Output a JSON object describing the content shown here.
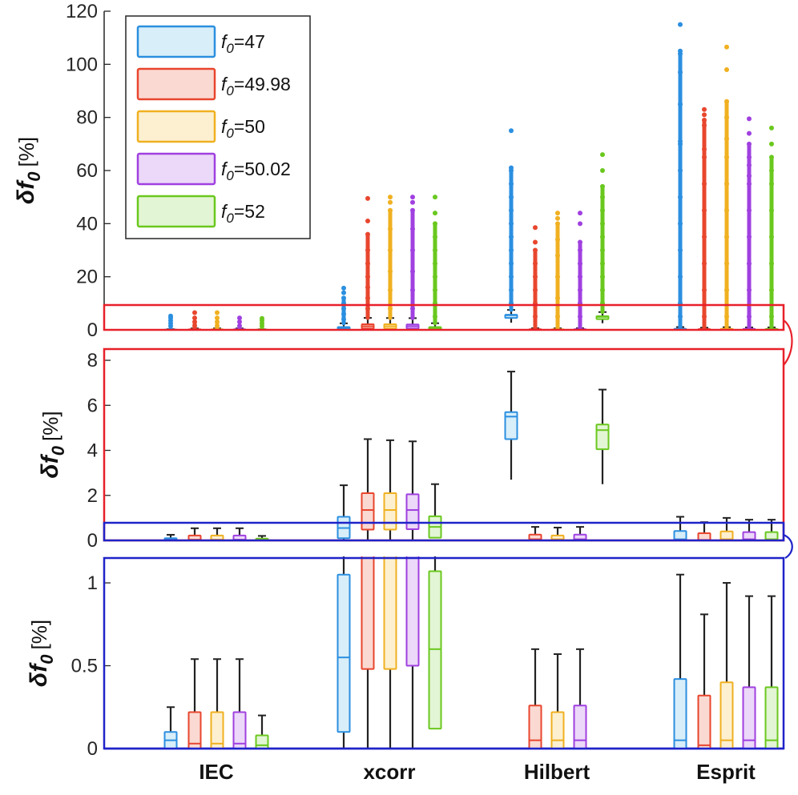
{
  "chart_data": [
    {
      "type": "box",
      "panel": "top",
      "ylabel": "δf0 [%]",
      "ylim": [
        0,
        120
      ],
      "yticks": [
        0,
        20,
        40,
        60,
        80,
        100,
        120
      ],
      "categories": [
        "IEC",
        "xcorr",
        "Hilbert",
        "Esprit"
      ],
      "series": [
        {
          "name": "f0=47",
          "color": "#2b8fe0",
          "fill": "#d8eef9",
          "boxes": [
            {
              "whisker_low": 0,
              "q1": 0,
              "median": 0.05,
              "q3": 0.1,
              "whisker_high": 0.25,
              "outliers": [
                1.5,
                2.5,
                3.5,
                4.5,
                5.2
              ]
            },
            {
              "whisker_low": 0,
              "q1": 0.1,
              "median": 0.55,
              "q3": 1.05,
              "whisker_high": 2.45,
              "outliers": [
                4,
                6,
                8,
                10,
                12,
                14,
                15.7
              ]
            },
            {
              "whisker_low": 2.7,
              "q1": 4.5,
              "median": 5.5,
              "q3": 5.7,
              "whisker_high": 7.5,
              "outliers": [
                10,
                15,
                20,
                25,
                30,
                35,
                40,
                45,
                50,
                55,
                60,
                61,
                75
              ]
            },
            {
              "whisker_low": 0,
              "q1": 0,
              "median": 0.05,
              "q3": 0.42,
              "whisker_high": 1.05,
              "outliers": [
                5,
                10,
                20,
                30,
                40,
                50,
                60,
                70,
                71,
                85,
                97,
                104,
                105,
                115
              ]
            }
          ]
        },
        {
          "name": "f0=49.98",
          "color": "#e8462e",
          "fill": "#fad9d2",
          "boxes": [
            {
              "whisker_low": 0,
              "q1": 0,
              "median": 0.03,
              "q3": 0.22,
              "whisker_high": 0.54,
              "outliers": [
                1.5,
                3,
                4.5,
                6.5
              ]
            },
            {
              "whisker_low": 0,
              "q1": 0.48,
              "median": 1.35,
              "q3": 2.1,
              "whisker_high": 4.5,
              "outliers": [
                8,
                12,
                16,
                20,
                25,
                30,
                36,
                41,
                49.5
              ]
            },
            {
              "whisker_low": 0,
              "q1": 0,
              "median": 0.05,
              "q3": 0.26,
              "whisker_high": 0.6,
              "outliers": [
                5,
                10,
                15,
                20,
                25,
                30,
                33,
                38.5
              ]
            },
            {
              "whisker_low": 0,
              "q1": 0,
              "median": 0.02,
              "q3": 0.32,
              "whisker_high": 0.81,
              "outliers": [
                5,
                15,
                25,
                35,
                45,
                55,
                65,
                68,
                77,
                79,
                81,
                83
              ]
            }
          ]
        },
        {
          "name": "f0=50",
          "color": "#f0b020",
          "fill": "#fcf0d0",
          "boxes": [
            {
              "whisker_low": 0,
              "q1": 0,
              "median": 0.03,
              "q3": 0.22,
              "whisker_high": 0.54,
              "outliers": [
                1.5,
                3,
                4.5,
                6.5
              ]
            },
            {
              "whisker_low": 0,
              "q1": 0.48,
              "median": 1.35,
              "q3": 2.1,
              "whisker_high": 4.45,
              "outliers": [
                8,
                15,
                22,
                30,
                38,
                45,
                48,
                50
              ]
            },
            {
              "whisker_low": 0,
              "q1": 0,
              "median": 0.05,
              "q3": 0.22,
              "whisker_high": 0.57,
              "outliers": [
                5,
                12,
                20,
                28,
                34,
                40,
                42,
                44
              ]
            },
            {
              "whisker_low": 0,
              "q1": 0,
              "median": 0.05,
              "q3": 0.4,
              "whisker_high": 1.0,
              "outliers": [
                5,
                15,
                25,
                35,
                45,
                55,
                65,
                72,
                80,
                86,
                98,
                106.5
              ]
            }
          ]
        },
        {
          "name": "f0=50.02",
          "color": "#a040e0",
          "fill": "#ecd8f8",
          "boxes": [
            {
              "whisker_low": 0,
              "q1": 0,
              "median": 0.03,
              "q3": 0.22,
              "whisker_high": 0.54,
              "outliers": [
                1.5,
                3,
                4.5
              ]
            },
            {
              "whisker_low": 0,
              "q1": 0.5,
              "median": 1.35,
              "q3": 2.05,
              "whisker_high": 4.4,
              "outliers": [
                8,
                15,
                22,
                30,
                38,
                45,
                48,
                50
              ]
            },
            {
              "whisker_low": 0,
              "q1": 0,
              "median": 0.05,
              "q3": 0.26,
              "whisker_high": 0.6,
              "outliers": [
                5,
                10,
                15,
                20,
                25,
                30,
                33,
                40,
                44
              ]
            },
            {
              "whisker_low": 0,
              "q1": 0,
              "median": 0.05,
              "q3": 0.37,
              "whisker_high": 0.92,
              "outliers": [
                5,
                15,
                25,
                35,
                45,
                55,
                58,
                62,
                65,
                70,
                74,
                79.5
              ]
            }
          ]
        },
        {
          "name": "f0=52",
          "color": "#6ac81e",
          "fill": "#e2f5d4",
          "boxes": [
            {
              "whisker_low": 0,
              "q1": 0,
              "median": 0.02,
              "q3": 0.08,
              "whisker_high": 0.2,
              "outliers": [
                1.5,
                2.5,
                3.5,
                4.3
              ]
            },
            {
              "whisker_low": 0.12,
              "q1": 0.12,
              "median": 0.6,
              "q3": 1.07,
              "whisker_high": 2.5,
              "outliers": [
                5,
                10,
                15,
                20,
                25,
                30,
                35,
                40,
                44,
                50
              ]
            },
            {
              "whisker_low": 2.5,
              "q1": 4.05,
              "median": 4.9,
              "q3": 5.15,
              "whisker_high": 6.7,
              "outliers": [
                10,
                15,
                20,
                25,
                30,
                35,
                40,
                45,
                50,
                54,
                60,
                66
              ]
            },
            {
              "whisker_low": 0,
              "q1": 0,
              "median": 0.05,
              "q3": 0.37,
              "whisker_high": 0.92,
              "outliers": [
                5,
                15,
                25,
                35,
                45,
                55,
                60,
                65,
                70,
                76
              ]
            }
          ]
        }
      ]
    },
    {
      "type": "box",
      "panel": "middle",
      "ylabel": "δf0 [%]",
      "ylim": [
        0,
        8.5
      ],
      "yticks": [
        0,
        2,
        4,
        6,
        8
      ],
      "categories": [
        "IEC",
        "xcorr",
        "Hilbert",
        "Esprit"
      ],
      "note": "zoom of top panel, same series"
    },
    {
      "type": "box",
      "panel": "bottom",
      "ylabel": "δf0 [%]",
      "ylim": [
        0,
        1.15
      ],
      "yticks": [
        0,
        0.5,
        1
      ],
      "ytick_labels": [
        "0",
        "0.5",
        "1"
      ],
      "categories": [
        "IEC",
        "xcorr",
        "Hilbert",
        "Esprit"
      ],
      "note": "zoom of middle panel, same series"
    }
  ],
  "legend": {
    "entries": [
      {
        "sub": "0",
        "base": "f",
        "text": "=47"
      },
      {
        "sub": "0",
        "base": "f",
        "text": "=49.98"
      },
      {
        "sub": "0",
        "base": "f",
        "text": "=50"
      },
      {
        "sub": "0",
        "base": "f",
        "text": "=50.02"
      },
      {
        "sub": "0",
        "base": "f",
        "text": "=52"
      }
    ]
  },
  "ylabel_parts": {
    "delta": "δ",
    "f": "f",
    "sub": "0",
    "unit": "[%]"
  },
  "top_ytick_labels": [
    "0",
    "20",
    "40",
    "60",
    "80",
    "100",
    "120"
  ],
  "mid_ytick_labels": [
    "0",
    "2",
    "4",
    "6",
    "8"
  ],
  "bot_ytick_labels": [
    "0",
    "0.5",
    "1"
  ],
  "colors": {
    "zoom_red": "#e8202a",
    "zoom_blue": "#1f23c8",
    "whisker": "#222222"
  }
}
